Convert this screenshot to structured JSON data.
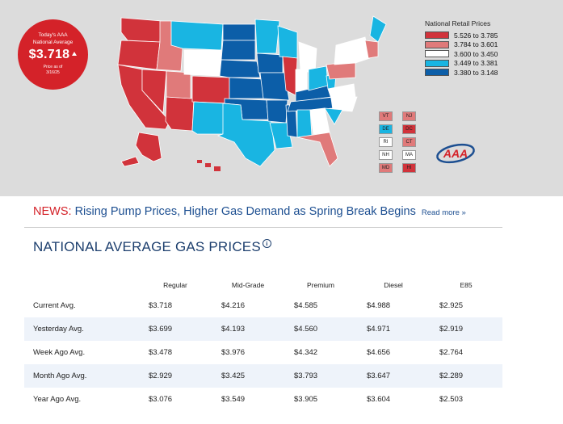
{
  "map": {
    "national_average": {
      "label_line1": "Today's AAA",
      "label_line2": "National Average",
      "price": "$3.718",
      "trend": "up",
      "as_of_line1": "Price as of",
      "as_of_line2": "3/16/25"
    },
    "legend": {
      "title": "National Retail Prices",
      "ranges": [
        {
          "label": "5.526 to 3.785",
          "color": "#d1333b"
        },
        {
          "label": "3.784 to 3.601",
          "color": "#e07a7a"
        },
        {
          "label": "3.600 to 3.450",
          "color": "#ffffff"
        },
        {
          "label": "3.449 to 3.381",
          "color": "#19b5e2"
        },
        {
          "label": "3.380 to 3.148",
          "color": "#0c5ea8"
        }
      ]
    },
    "small_states": [
      {
        "code": "VT",
        "color": "#e07a7a"
      },
      {
        "code": "NJ",
        "color": "#e07a7a"
      },
      {
        "code": "DE",
        "color": "#19b5e2"
      },
      {
        "code": "DC",
        "color": "#d1333b"
      },
      {
        "code": "RI",
        "color": "#ffffff"
      },
      {
        "code": "CT",
        "color": "#e07a7a"
      },
      {
        "code": "NH",
        "color": "#ffffff"
      },
      {
        "code": "MA",
        "color": "#ffffff"
      },
      {
        "code": "MD",
        "color": "#e07a7a"
      },
      {
        "code": "HI",
        "color": "#d1333b"
      }
    ],
    "logo_text": "AAA"
  },
  "news": {
    "keyword": "NEWS:",
    "headline": "Rising Pump Prices, Higher Gas Demand as Spring Break Begins",
    "read_more": "Read more »"
  },
  "table": {
    "title": "NATIONAL AVERAGE GAS PRICES",
    "info_glyph": "i",
    "columns": [
      "Regular",
      "Mid-Grade",
      "Premium",
      "Diesel",
      "E85"
    ],
    "rows": [
      {
        "label": "Current Avg.",
        "values": [
          "$3.718",
          "$4.216",
          "$4.585",
          "$4.988",
          "$2.925"
        ]
      },
      {
        "label": "Yesterday Avg.",
        "values": [
          "$3.699",
          "$4.193",
          "$4.560",
          "$4.971",
          "$2.919"
        ]
      },
      {
        "label": "Week Ago Avg.",
        "values": [
          "$3.478",
          "$3.976",
          "$4.342",
          "$4.656",
          "$2.764"
        ]
      },
      {
        "label": "Month Ago Avg.",
        "values": [
          "$2.929",
          "$3.425",
          "$3.793",
          "$3.647",
          "$2.289"
        ]
      },
      {
        "label": "Year Ago Avg.",
        "values": [
          "$3.076",
          "$3.549",
          "$3.905",
          "$3.604",
          "$2.503"
        ]
      }
    ]
  }
}
